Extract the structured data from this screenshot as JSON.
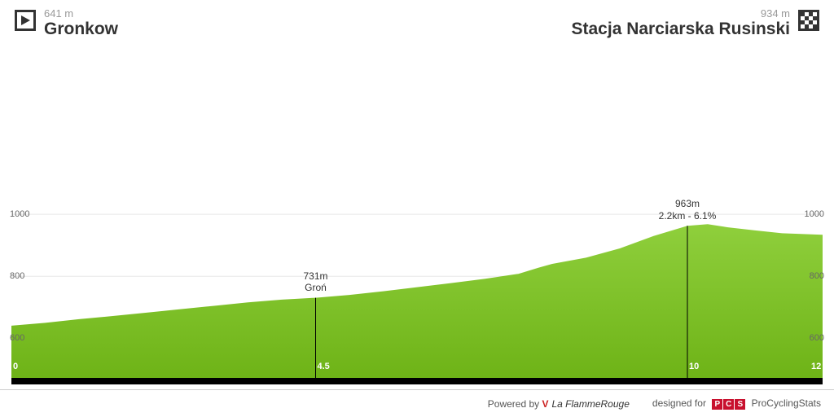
{
  "header": {
    "start": {
      "elevation_text": "641 m",
      "name": "Gronkow"
    },
    "finish": {
      "elevation_text": "934 m",
      "name": "Stacja Narciarska Rusinski"
    }
  },
  "profile": {
    "type": "area",
    "x_range_km": [
      0,
      12
    ],
    "y_range_m": [
      470,
      1100
    ],
    "y_ticks": [
      600,
      800,
      1000
    ],
    "x_ticks": [
      0,
      4.5,
      10,
      12
    ],
    "fill_top_color": "#8fcf3c",
    "fill_bottom_color": "#6eb317",
    "background_color": "#ffffff",
    "grid_color": "#e8e8e8",
    "baseline_color": "#000000",
    "elevation_points_km_m": [
      [
        0.0,
        641
      ],
      [
        0.5,
        650
      ],
      [
        1.0,
        662
      ],
      [
        1.5,
        672
      ],
      [
        2.0,
        683
      ],
      [
        2.5,
        694
      ],
      [
        3.0,
        705
      ],
      [
        3.5,
        716
      ],
      [
        4.0,
        725
      ],
      [
        4.5,
        731
      ],
      [
        5.0,
        740
      ],
      [
        5.5,
        752
      ],
      [
        6.0,
        765
      ],
      [
        6.5,
        778
      ],
      [
        7.0,
        792
      ],
      [
        7.5,
        808
      ],
      [
        7.8,
        828
      ],
      [
        8.0,
        840
      ],
      [
        8.5,
        860
      ],
      [
        9.0,
        890
      ],
      [
        9.5,
        930
      ],
      [
        10.0,
        963
      ],
      [
        10.3,
        968
      ],
      [
        10.6,
        958
      ],
      [
        11.0,
        948
      ],
      [
        11.4,
        939
      ],
      [
        12.0,
        934
      ]
    ],
    "markers": [
      {
        "km": 4.5,
        "lines": [
          "731m",
          "Groń"
        ],
        "text_color": "#333333"
      },
      {
        "km": 10.0,
        "lines": [
          "963m",
          "2.2km - 6.1%"
        ],
        "text_color": "#333333"
      }
    ]
  },
  "footer": {
    "powered_by_label": "Powered by",
    "lfr_name": "La FlammeRouge",
    "designed_for_label": "designed for",
    "pcs_name": "ProCyclingStats",
    "pcs_badge": [
      "P",
      "C",
      "S"
    ]
  },
  "colors": {
    "text_muted": "#999999",
    "text_dark": "#333333",
    "badge_red": "#c8102e"
  }
}
